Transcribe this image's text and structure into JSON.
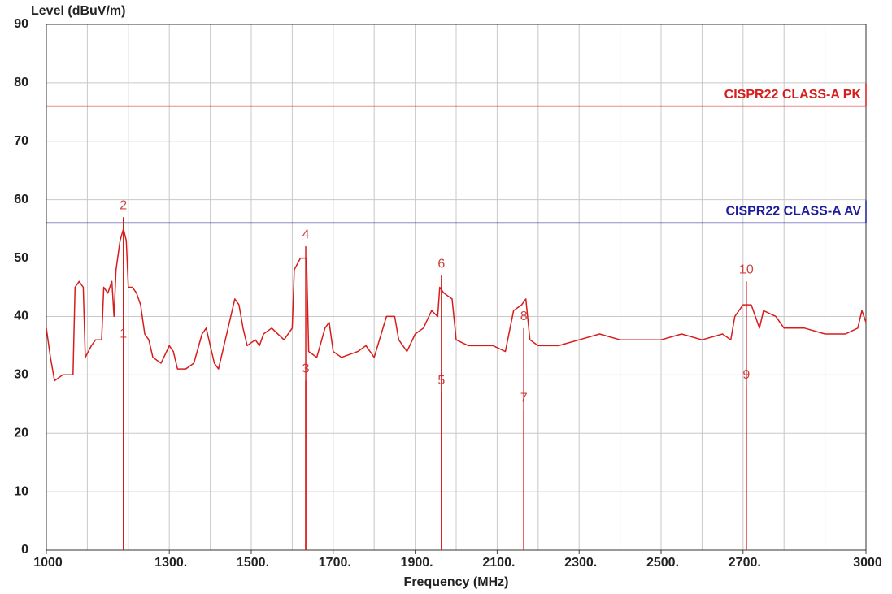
{
  "chart_data": {
    "type": "line",
    "ylabel": "Level (dBuV/m)",
    "xlabel": "Frequency (MHz)",
    "xlim": [
      1000,
      3000
    ],
    "ylim": [
      0,
      90
    ],
    "yticks": [
      0,
      10,
      20,
      30,
      40,
      50,
      60,
      70,
      80,
      90
    ],
    "xticks": [
      1000,
      {
        "value": 1300,
        "label": "1300."
      },
      {
        "value": 1500,
        "label": "1500."
      },
      {
        "value": 1700,
        "label": "1700."
      },
      {
        "value": 1900,
        "label": "1900."
      },
      {
        "value": 2100,
        "label": "2100."
      },
      {
        "value": 2300,
        "label": "2300."
      },
      {
        "value": 2500,
        "label": "2500."
      },
      {
        "value": 2700,
        "label": "2700."
      },
      3000
    ],
    "xgrid_step": 100,
    "grid": true,
    "series": [
      {
        "color": "#d81c1c",
        "x": [
          1000,
          1010,
          1020,
          1040,
          1060,
          1065,
          1070,
          1080,
          1090,
          1095,
          1110,
          1120,
          1135,
          1140,
          1150,
          1160,
          1165,
          1170,
          1180,
          1188,
          1195,
          1200,
          1210,
          1220,
          1230,
          1240,
          1250,
          1260,
          1280,
          1300,
          1310,
          1320,
          1340,
          1360,
          1380,
          1390,
          1400,
          1410,
          1420,
          1440,
          1460,
          1470,
          1480,
          1490,
          1510,
          1520,
          1530,
          1550,
          1580,
          1600,
          1605,
          1620,
          1635,
          1640,
          1660,
          1680,
          1690,
          1700,
          1720,
          1760,
          1780,
          1800,
          1830,
          1850,
          1860,
          1880,
          1900,
          1920,
          1940,
          1955,
          1960,
          1970,
          1990,
          2000,
          2030,
          2060,
          2090,
          2120,
          2140,
          2160,
          2170,
          2180,
          2200,
          2250,
          2300,
          2350,
          2400,
          2450,
          2500,
          2550,
          2600,
          2650,
          2670,
          2680,
          2700,
          2720,
          2740,
          2750,
          2780,
          2800,
          2850,
          2900,
          2950,
          2980,
          2990,
          3000
        ],
        "values": [
          38,
          33,
          29,
          30,
          30,
          30,
          45,
          46,
          45,
          33,
          35,
          36,
          36,
          45,
          44,
          46,
          40,
          48,
          53,
          55,
          53,
          45,
          45,
          44,
          42,
          37,
          36,
          33,
          32,
          35,
          34,
          31,
          31,
          32,
          37,
          38,
          35,
          32,
          31,
          37,
          43,
          42,
          38,
          35,
          36,
          35,
          37,
          38,
          36,
          38,
          48,
          50,
          50,
          34,
          33,
          38,
          39,
          34,
          33,
          34,
          35,
          33,
          40,
          40,
          36,
          34,
          37,
          38,
          41,
          40,
          45,
          44,
          43,
          36,
          35,
          35,
          35,
          34,
          41,
          42,
          43,
          36,
          35,
          35,
          36,
          37,
          36,
          36,
          36,
          37,
          36,
          37,
          36,
          40,
          42,
          42,
          38,
          41,
          40,
          38,
          38,
          37,
          37,
          38,
          41,
          39
        ]
      }
    ],
    "limits": [
      {
        "name": "CISPR22 CLASS-A PK",
        "value": 76,
        "color": "#d81c1c"
      },
      {
        "name": "CISPR22 CLASS-A AV",
        "value": 56,
        "color": "#1c1c9c"
      }
    ],
    "markers": [
      {
        "label": "1",
        "x": 1188,
        "y": 35
      },
      {
        "label": "2",
        "x": 1188,
        "y": 57
      },
      {
        "label": "3",
        "x": 1633,
        "y": 29
      },
      {
        "label": "4",
        "x": 1633,
        "y": 52
      },
      {
        "label": "5",
        "x": 1964,
        "y": 27
      },
      {
        "label": "6",
        "x": 1964,
        "y": 47
      },
      {
        "label": "7",
        "x": 2165,
        "y": 24
      },
      {
        "label": "8",
        "x": 2165,
        "y": 38
      },
      {
        "label": "9",
        "x": 2708,
        "y": 28
      },
      {
        "label": "10",
        "x": 2708,
        "y": 46
      }
    ],
    "marker_color": "#d81c1c"
  }
}
